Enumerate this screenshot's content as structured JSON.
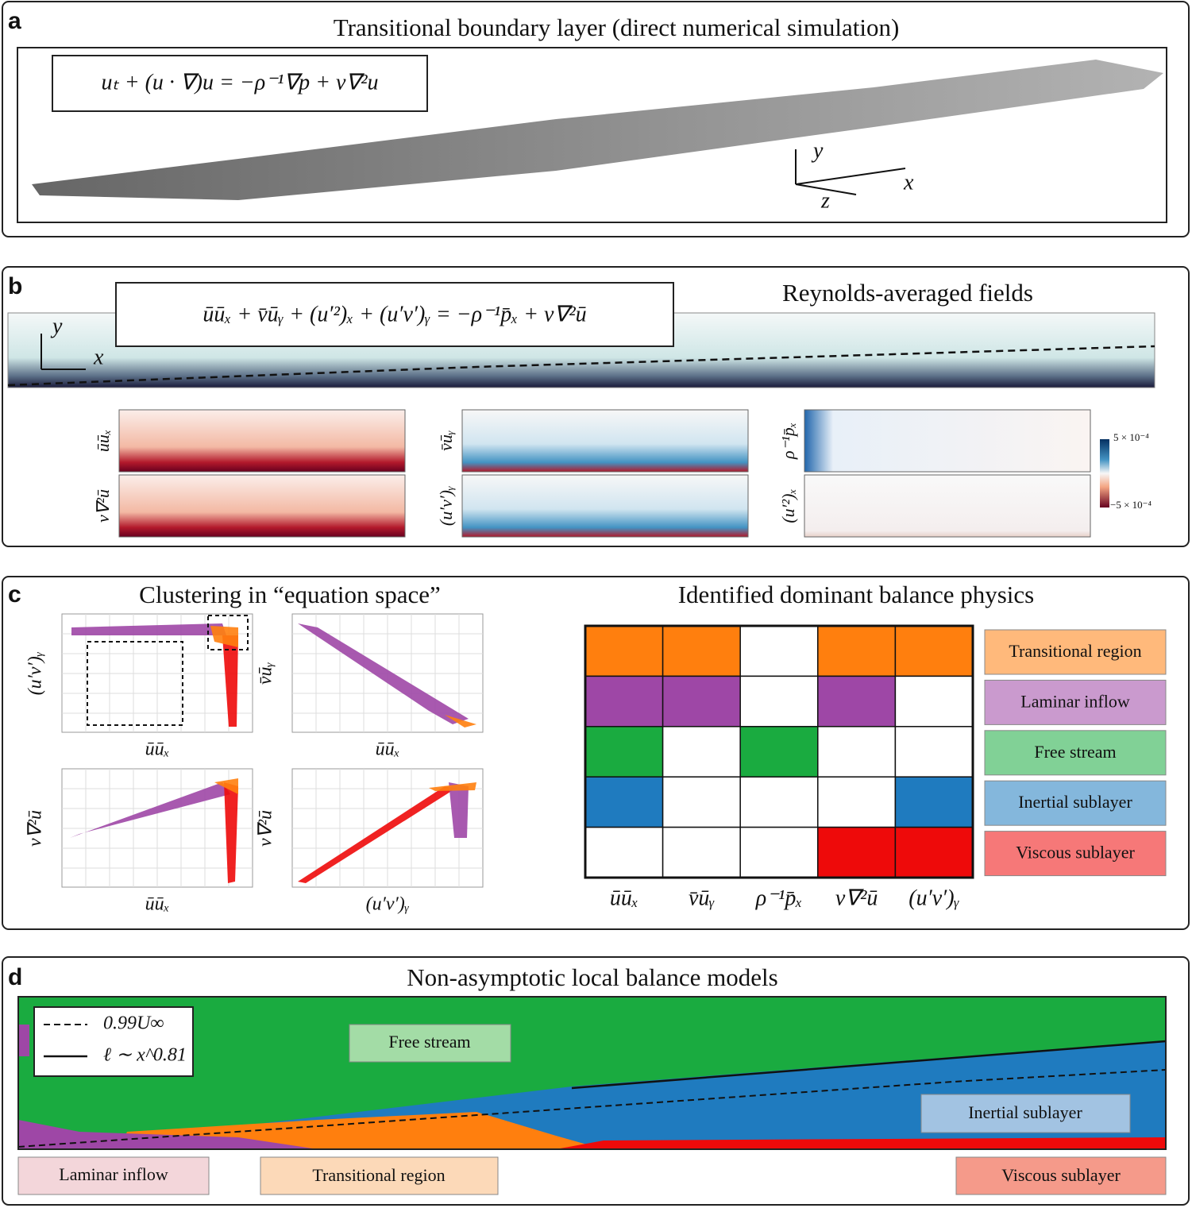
{
  "panel_a": {
    "label": "a",
    "title": "Transitional boundary layer (direct numerical simulation)",
    "equation": "uₜ + (u · ∇)u = −ρ⁻¹∇p + ν∇²u",
    "axis_labels": {
      "y": "y",
      "x": "x",
      "z": "z"
    }
  },
  "panel_b": {
    "label": "b",
    "title": "Reynolds-averaged fields",
    "equation": "ūūₓ + v̄ūᵧ + (u′²)ₓ + (u′v′)ᵧ = −ρ⁻¹p̄ₓ + ν∇²ū",
    "axis_labels": {
      "y": "y",
      "x": "x"
    },
    "fields": [
      "ūūₓ",
      "v̄ūᵧ",
      "ρ⁻¹p̄ₓ",
      "ν∇²ū",
      "(u′v′)ᵧ",
      "(u′²)ₓ"
    ],
    "colorbar": {
      "max_label": "5 × 10⁻⁴",
      "min_label": "−5 × 10⁻⁴"
    }
  },
  "panel_c": {
    "label": "c",
    "left_title": "Clustering in “equation space”",
    "right_title": "Identified dominant balance physics",
    "scatter_axes": [
      {
        "x": "ūūₓ",
        "y": "(u′v′)ᵧ"
      },
      {
        "x": "ūūₓ",
        "y": "v̄ūᵧ"
      },
      {
        "x": "ūūₓ",
        "y": "ν∇²ū"
      },
      {
        "x": "(u′v′)ᵧ",
        "y": "ν∇²ū"
      }
    ],
    "terms": [
      "ūūₓ",
      "v̄ūᵧ",
      "ρ⁻¹p̄ₓ",
      "ν∇²ū",
      "(u′v′)ᵧ"
    ],
    "regimes": [
      {
        "name": "Transitional region",
        "color": "#ff7f0e",
        "active": [
          true,
          true,
          false,
          true,
          true
        ]
      },
      {
        "name": "Laminar inflow",
        "color": "#9e47a6",
        "active": [
          true,
          true,
          false,
          true,
          false
        ]
      },
      {
        "name": "Free stream",
        "color": "#1aab40",
        "active": [
          true,
          false,
          true,
          false,
          false
        ]
      },
      {
        "name": "Inertial sublayer",
        "color": "#1f7bbf",
        "active": [
          true,
          false,
          false,
          false,
          true
        ]
      },
      {
        "name": "Viscous sublayer",
        "color": "#ee0a0a",
        "active": [
          false,
          false,
          false,
          true,
          true
        ]
      }
    ]
  },
  "panel_d": {
    "label": "d",
    "title": "Non-asymptotic local balance models",
    "legend": [
      "0.99U∞",
      "ℓ ∼ x^0.81"
    ],
    "regions": [
      "Free stream",
      "Inertial sublayer",
      "Laminar inflow",
      "Transitional region",
      "Viscous sublayer"
    ]
  }
}
